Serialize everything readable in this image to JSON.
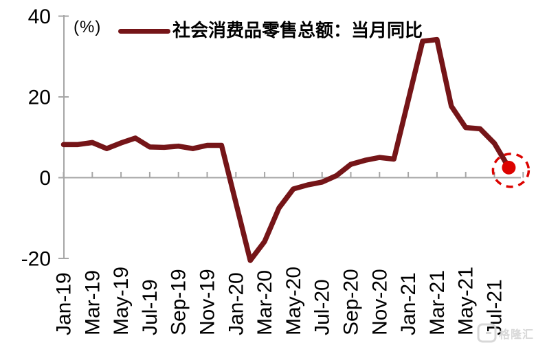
{
  "chart_data": {
    "type": "line",
    "title": "",
    "unit_label": "(%)",
    "legend": "社会消费品零售总额：当月同比",
    "legend_position": "top",
    "grid": "zero-line-only",
    "months": [
      "Jan-19",
      "Feb-19",
      "Mar-19",
      "Apr-19",
      "May-19",
      "Jun-19",
      "Jul-19",
      "Aug-19",
      "Sep-19",
      "Oct-19",
      "Nov-19",
      "Dec-19",
      "Jan-20",
      "Feb-20",
      "Mar-20",
      "Apr-20",
      "May-20",
      "Jun-20",
      "Jul-20",
      "Aug-20",
      "Sep-20",
      "Oct-20",
      "Nov-20",
      "Dec-20",
      "Jan-21",
      "Feb-21",
      "Mar-21",
      "Apr-21",
      "May-21",
      "Jun-21",
      "Jul-21",
      "Aug-21"
    ],
    "values": [
      8.2,
      8.2,
      8.7,
      7.2,
      8.6,
      9.8,
      7.6,
      7.5,
      7.8,
      7.2,
      8.0,
      8.0,
      null,
      -20.5,
      -15.8,
      -7.5,
      -2.8,
      -1.8,
      -1.1,
      0.5,
      3.3,
      4.3,
      5.0,
      4.6,
      null,
      33.8,
      34.2,
      17.7,
      12.4,
      12.1,
      8.5,
      2.5
    ],
    "x_tick_labels": [
      "Jan-19",
      "Mar-19",
      "May-19",
      "Jul-19",
      "Sep-19",
      "Nov-19",
      "Jan-20",
      "Mar-20",
      "May-20",
      "Jul-20",
      "Sep-20",
      "Nov-20",
      "Jan-21",
      "Mar-21",
      "May-21",
      "Jul-21"
    ],
    "yticks": [
      40,
      20,
      0,
      -20
    ],
    "ylim": [
      -20,
      40
    ],
    "highlight": {
      "month": "Aug-21",
      "value": 2.5
    },
    "colors": {
      "line": "#751518",
      "highlight": "#dc0300",
      "axis": "#a6a6a6",
      "text": "#000000",
      "watermark": "#d6d6d6"
    }
  },
  "watermark": {
    "text": "格隆汇"
  }
}
